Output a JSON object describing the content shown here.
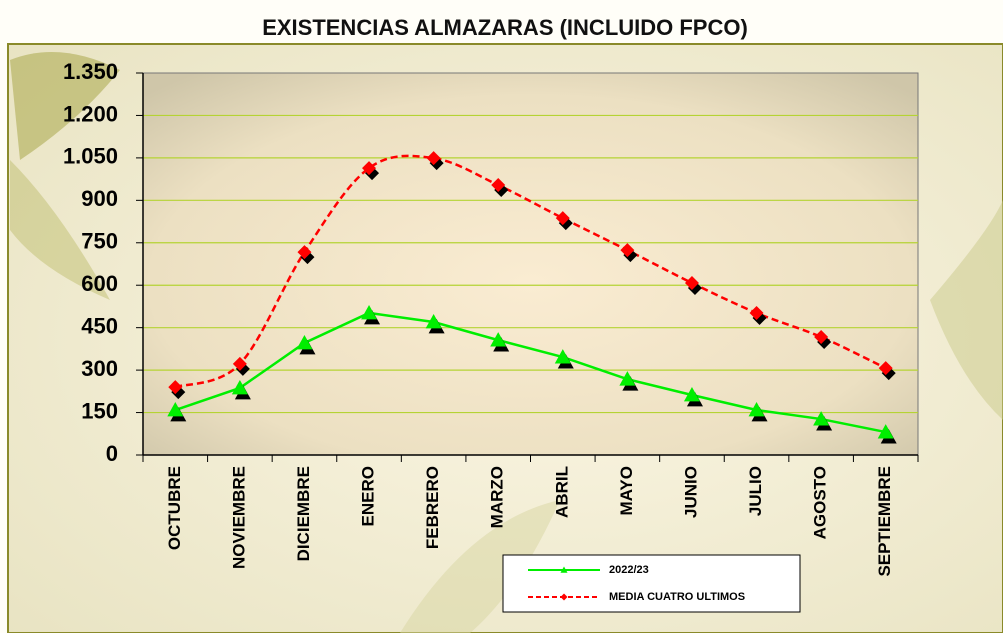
{
  "chart_data": {
    "type": "line",
    "title": "EXISTENCIAS ALMAZARAS (INCLUIDO FPCO)",
    "categories": [
      "OCTUBRE",
      "NOVIEMBRE",
      "DICIEMBRE",
      "ENERO",
      "FEBRERO",
      "MARZO",
      "ABRIL",
      "MAYO",
      "JUNIO",
      "JULIO",
      "AGOSTO",
      "SEPTIEMBRE"
    ],
    "series": [
      {
        "name": "2022/23",
        "color": "#00ee00",
        "values": [
          159,
          237,
          396,
          502,
          470,
          406,
          346,
          268,
          212,
          159,
          127,
          81
        ]
      },
      {
        "name": "MEDIA CUATRO ULTIMOS",
        "color": "#ff0000",
        "values": [
          240,
          322,
          717,
          1014,
          1049,
          954,
          837,
          724,
          608,
          502,
          417,
          307
        ]
      }
    ],
    "ylim": [
      0,
      1350
    ],
    "yticks": [
      0,
      150,
      300,
      450,
      600,
      750,
      900,
      {
        "value": 1050,
        "label": "1.050"
      },
      {
        "value": 1200,
        "label": "1.200"
      },
      {
        "value": 1350,
        "label": "1.350"
      }
    ],
    "grid": true
  }
}
